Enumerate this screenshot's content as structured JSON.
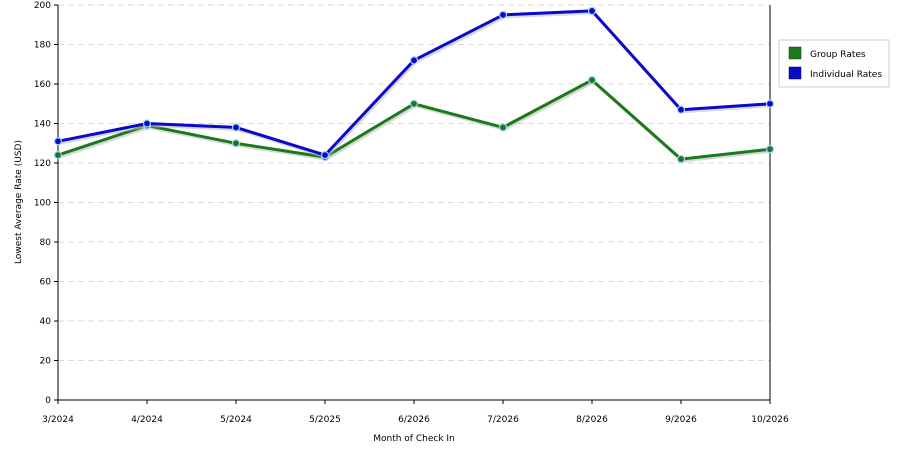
{
  "chart_data": {
    "type": "line",
    "categories": [
      "3/2024",
      "4/2024",
      "5/2024",
      "5/2025",
      "6/2026",
      "7/2026",
      "8/2026",
      "9/2026",
      "10/2026"
    ],
    "series": [
      {
        "name": "Group Rates",
        "color": "#1a7a1a",
        "values": [
          124,
          139,
          130,
          123,
          150,
          138,
          162,
          122,
          127
        ]
      },
      {
        "name": "Individual Rates",
        "color": "#0a0ac8",
        "values": [
          131,
          140,
          138,
          124,
          172,
          195,
          197,
          147,
          150
        ]
      }
    ],
    "xlabel": "Month of Check In",
    "ylabel": "Lowest Average Rate (USD)",
    "ylim": [
      0,
      200
    ],
    "yticks": [
      0,
      20,
      40,
      60,
      80,
      100,
      120,
      140,
      160,
      180,
      200
    ],
    "grid": true,
    "legend_position": "right"
  }
}
